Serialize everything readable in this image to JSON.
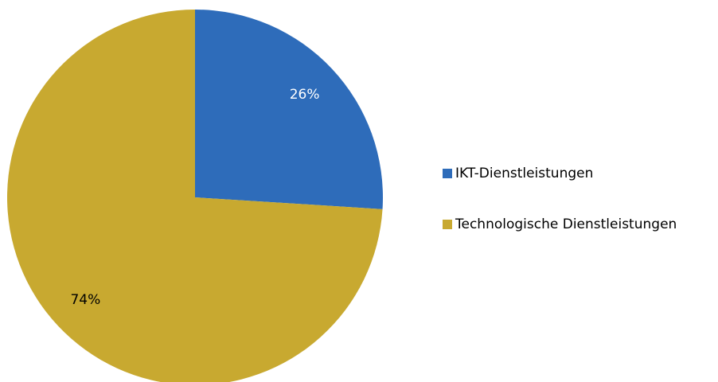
{
  "chart_data": {
    "type": "pie",
    "categories": [
      "IKT-Dienstleistungen",
      "Technologische Dienstleistungen"
    ],
    "values": [
      26,
      74
    ],
    "value_labels": [
      "26%",
      "74%"
    ],
    "colors": [
      "#2e6cba",
      "#c8a930"
    ],
    "legend": "right"
  }
}
